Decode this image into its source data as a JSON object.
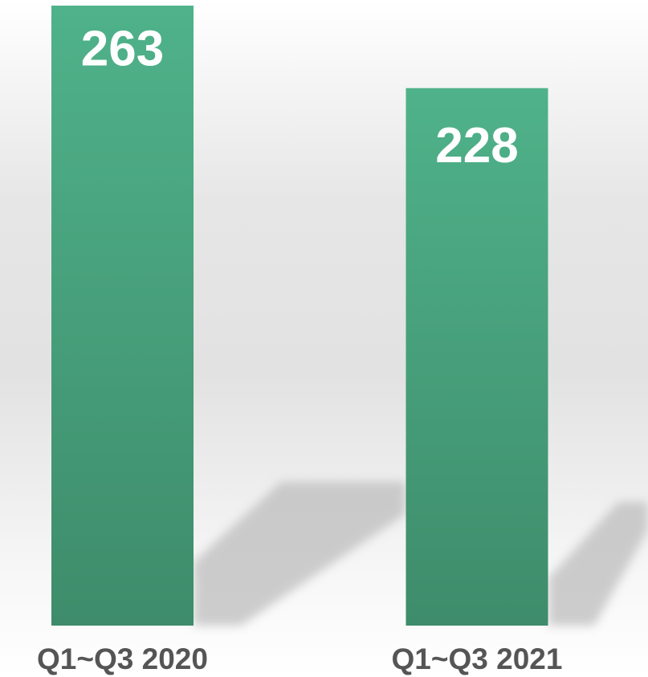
{
  "chart_data": {
    "type": "bar",
    "categories": [
      "Q1~Q3 2020",
      "Q1~Q3 2021"
    ],
    "values": [
      263,
      228
    ],
    "color": "#48a27d"
  }
}
